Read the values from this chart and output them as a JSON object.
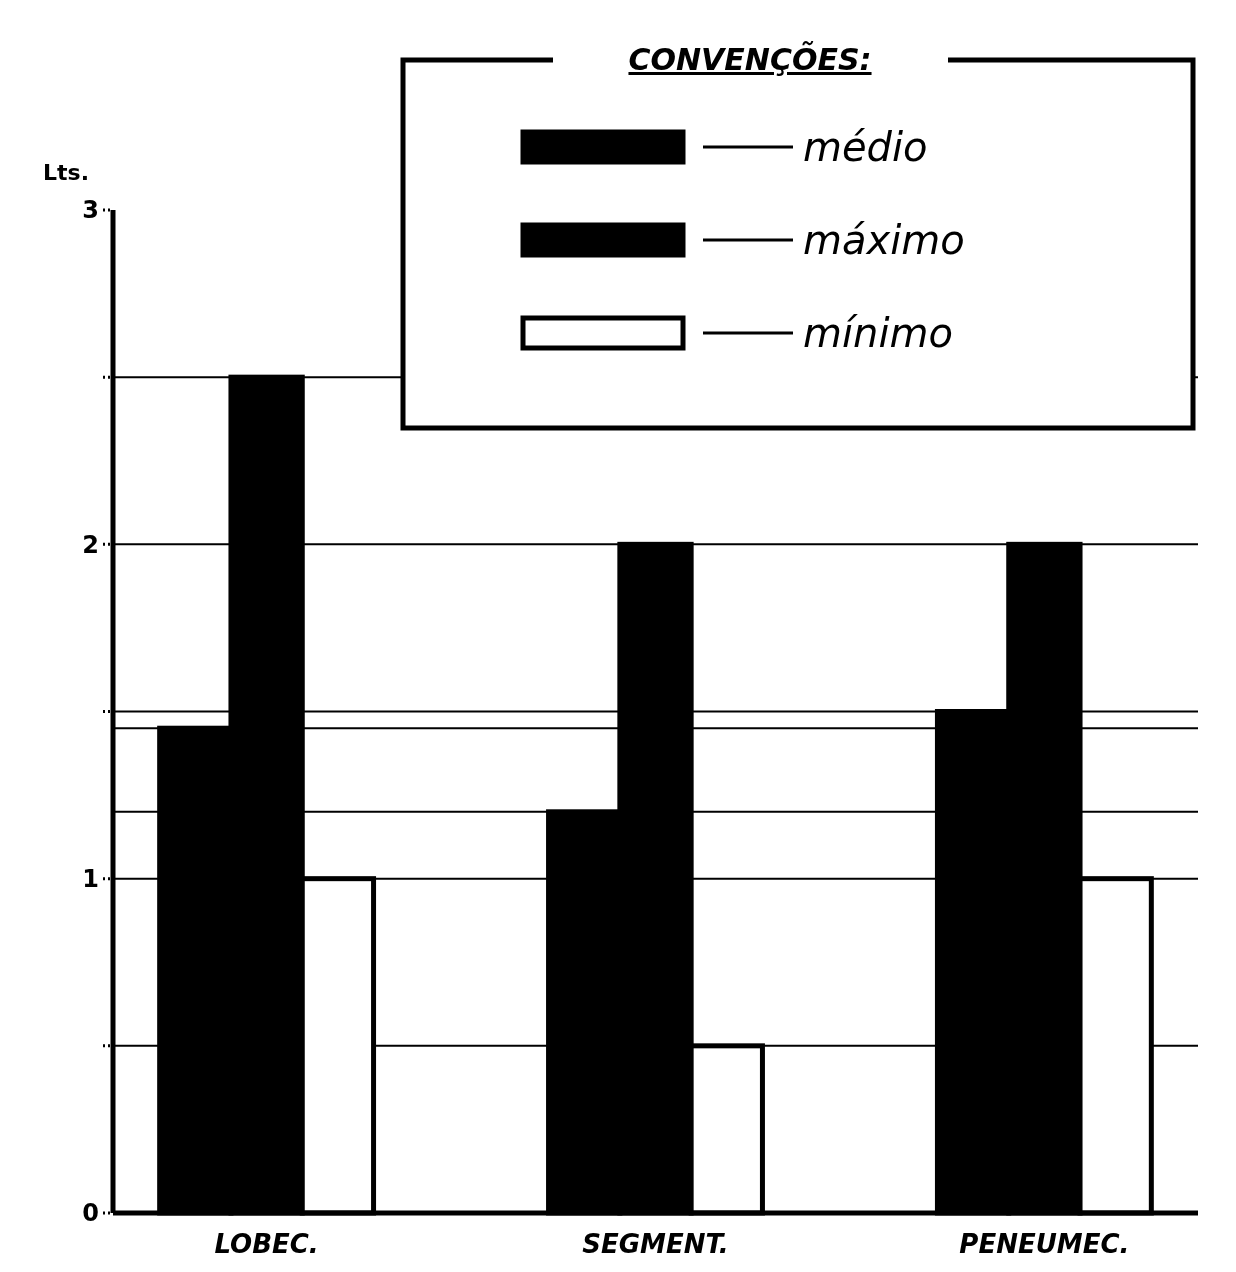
{
  "chart_data": {
    "type": "bar",
    "ylabel": "Lts.",
    "legend_title": "CONVENÇÕES:",
    "categories": [
      "LOBEC.",
      "SEGMENT.",
      "PENEUMEC."
    ],
    "series": [
      {
        "name": "médio",
        "color": "#000000",
        "values": [
          1.45,
          1.2,
          1.5
        ]
      },
      {
        "name": "máximo",
        "color": "#000000",
        "values": [
          2.5,
          2.0,
          2.0
        ]
      },
      {
        "name": "mínimo",
        "color": "#ffffff",
        "values": [
          1.0,
          0.5,
          1.0
        ]
      }
    ],
    "ylim": [
      0,
      3
    ],
    "yticks": [
      0,
      {
        "value": 0.5,
        "label": null
      },
      1,
      {
        "value": 1.5,
        "label": null
      },
      2,
      {
        "value": 2.5,
        "label": null
      },
      3
    ],
    "grid": "y",
    "legend": "top right",
    "ref_lines": [
      {
        "axis": "y",
        "value": 1.45,
        "label": null
      },
      {
        "axis": "y",
        "value": 1.2,
        "label": null
      }
    ]
  }
}
